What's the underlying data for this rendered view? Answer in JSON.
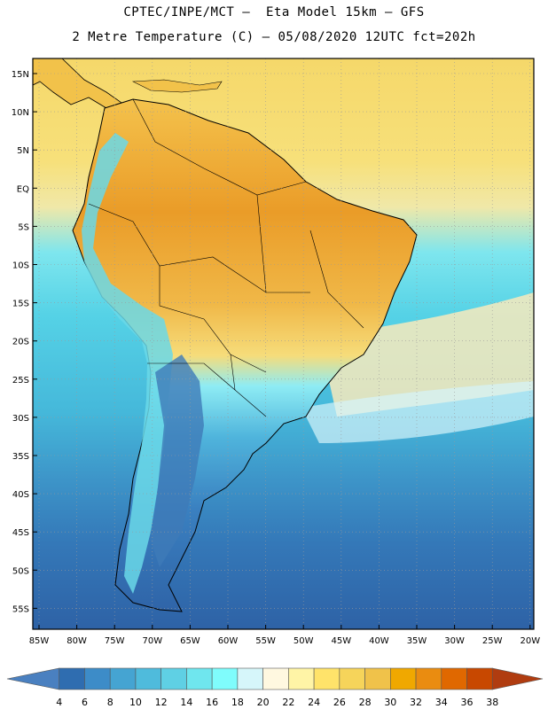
{
  "header": {
    "title_line1": "CPTEC/INPE/MCT –  Eta Model 15km – GFS",
    "title_line2": "2 Metre Temperature (C) – 05/08/2020 12UTC fct=202h"
  },
  "map": {
    "lat_labels": [
      "15N",
      "10N",
      "5N",
      "EQ",
      "5S",
      "10S",
      "15S",
      "20S",
      "25S",
      "30S",
      "35S",
      "40S",
      "45S",
      "50S",
      "55S"
    ],
    "lon_labels": [
      "85W",
      "80W",
      "75W",
      "70W",
      "65W",
      "60W",
      "55W",
      "50W",
      "45W",
      "40W",
      "35W",
      "30W",
      "25W",
      "20W"
    ],
    "grid": "dotted"
  },
  "colorbar": {
    "labels": [
      "4",
      "6",
      "8",
      "10",
      "12",
      "14",
      "16",
      "18",
      "20",
      "22",
      "24",
      "26",
      "28",
      "30",
      "32",
      "34",
      "36",
      "38"
    ],
    "colors": [
      "#4a80c0",
      "#2f6db0",
      "#3d8cc8",
      "#45a4d2",
      "#4fbbdc",
      "#5fd0e4",
      "#6fe6ee",
      "#7ffcfc",
      "#d6f6fa",
      "#fff8e0",
      "#fff4a6",
      "#ffe36a",
      "#f6d45a",
      "#f0c24a",
      "#f0a800",
      "#ea8c10",
      "#e06800",
      "#c84800",
      "#b03c10"
    ]
  },
  "colors": {
    "ocean_north": "#f5d86a",
    "ocean_cool": "#49c6e0",
    "ocean_cold": "#2f6aa8",
    "land_hot": "#eb9f2a",
    "land_warm": "#f4c34e",
    "land_cold": "#3a73b0",
    "coast": "#000000"
  }
}
